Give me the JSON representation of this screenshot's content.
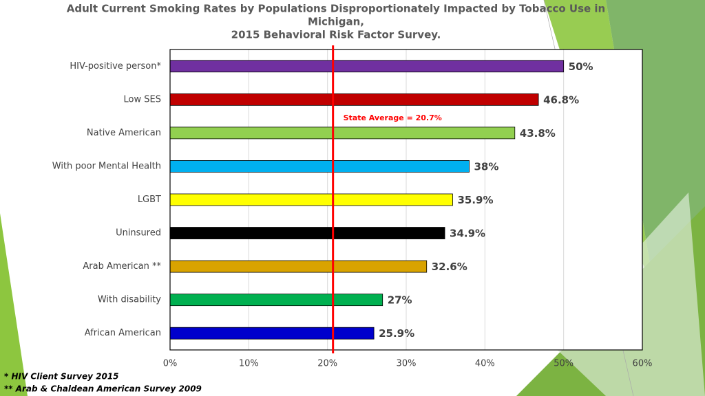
{
  "chart_data": {
    "type": "bar",
    "orientation": "horizontal",
    "title": [
      "Adult  Current Smoking Rates by Populations Disproportionately Impacted by Tobacco Use in",
      "Michigan,",
      "2015 Behavioral Risk Factor Survey."
    ],
    "categories": [
      "HIV-positive person*",
      "Low SES",
      "Native American",
      "With poor Mental Health",
      "LGBT",
      "Uninsured",
      "Arab American **",
      "With disability",
      "African American"
    ],
    "values": [
      50,
      46.8,
      43.8,
      38,
      35.9,
      34.9,
      32.6,
      27,
      25.9
    ],
    "value_labels": [
      "50%",
      "46.8%",
      "43.8%",
      "38%",
      "35.9%",
      "34.9%",
      "32.6%",
      "27%",
      "25.9%"
    ],
    "colors": [
      "#7030a0",
      "#c00000",
      "#92d050",
      "#00b0f0",
      "#ffff00",
      "#000000",
      "#d9a300",
      "#00b050",
      "#0000cc"
    ],
    "xlim": [
      0,
      60
    ],
    "xticks": [
      {
        "value": 0,
        "label": "0%"
      },
      {
        "value": 10,
        "label": "10%"
      },
      {
        "value": 20,
        "label": "20%"
      },
      {
        "value": 30,
        "label": "30%"
      },
      {
        "value": 40,
        "label": "40%"
      },
      {
        "value": 50,
        "label": "50%"
      },
      {
        "value": 60,
        "label": "60%"
      }
    ],
    "grid": true,
    "reference_line": {
      "value": 20.7,
      "label": "State Average = 20.7%",
      "color": "#ff0000"
    },
    "footnotes": [
      "* HIV Client Survey 2015",
      "** Arab & Chaldean American Survey 2009"
    ]
  }
}
